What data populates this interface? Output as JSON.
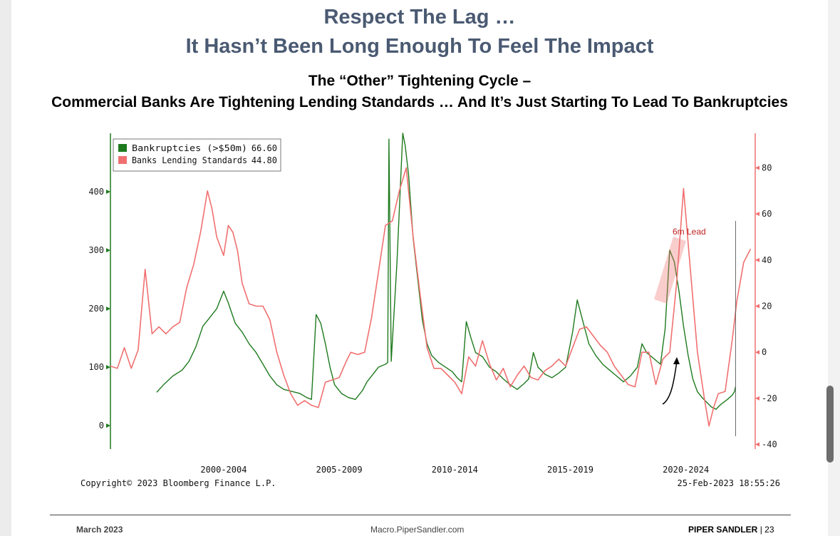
{
  "slide": {
    "title_line1": "Respect The Lag …",
    "title_line2": "It Hasn’t Been Long Enough To Feel The Impact",
    "subtitle_line1": "The “Other” Tightening Cycle –",
    "subtitle_line2": "Commercial Banks Are Tightening Lending Standards … And It’s Just Starting To Lead To Bankruptcies"
  },
  "chart_data": {
    "type": "line",
    "left_axis": {
      "ticks": [
        0,
        100,
        200,
        300,
        400
      ],
      "range": [
        -40,
        500
      ]
    },
    "right_axis": {
      "ticks": [
        -40,
        -20,
        0,
        20,
        40,
        60,
        80
      ],
      "range": [
        -42,
        95
      ]
    },
    "x_range": [
      1996.1,
      2024.0
    ],
    "x_ticks": [
      {
        "label": "2000-2004",
        "x": 2001.0
      },
      {
        "label": "2005-2009",
        "x": 2006.0
      },
      {
        "label": "2010-2014",
        "x": 2011.0
      },
      {
        "label": "2015-2019",
        "x": 2016.0
      },
      {
        "label": "2020-2024",
        "x": 2021.0
      }
    ],
    "series": [
      {
        "name": "Bankruptcies (>$50m)",
        "last_value": "66.60",
        "color": "#1e7a1e",
        "axis": "left",
        "points": [
          [
            1998.1,
            57
          ],
          [
            1998.4,
            70
          ],
          [
            1998.8,
            85
          ],
          [
            1999.2,
            95
          ],
          [
            1999.5,
            110
          ],
          [
            1999.8,
            135
          ],
          [
            2000.1,
            170
          ],
          [
            2000.4,
            185
          ],
          [
            2000.7,
            200
          ],
          [
            2001.0,
            230
          ],
          [
            2001.2,
            210
          ],
          [
            2001.5,
            175
          ],
          [
            2001.8,
            160
          ],
          [
            2002.1,
            140
          ],
          [
            2002.4,
            125
          ],
          [
            2002.7,
            105
          ],
          [
            2003.0,
            85
          ],
          [
            2003.3,
            70
          ],
          [
            2003.6,
            62
          ],
          [
            2004.0,
            58
          ],
          [
            2004.3,
            55
          ],
          [
            2004.6,
            48
          ],
          [
            2004.8,
            45
          ],
          [
            2005.0,
            190
          ],
          [
            2005.2,
            175
          ],
          [
            2005.4,
            140
          ],
          [
            2005.6,
            100
          ],
          [
            2005.8,
            70
          ],
          [
            2006.1,
            55
          ],
          [
            2006.4,
            48
          ],
          [
            2006.7,
            45
          ],
          [
            2007.0,
            60
          ],
          [
            2007.2,
            75
          ],
          [
            2007.5,
            90
          ],
          [
            2007.7,
            100
          ],
          [
            2008.0,
            105
          ],
          [
            2008.1,
            108
          ],
          [
            2008.15,
            490
          ],
          [
            2008.25,
            110
          ],
          [
            2008.5,
            280
          ],
          [
            2008.75,
            500
          ],
          [
            2008.85,
            480
          ],
          [
            2009.0,
            430
          ],
          [
            2009.2,
            320
          ],
          [
            2009.4,
            250
          ],
          [
            2009.6,
            180
          ],
          [
            2009.8,
            140
          ],
          [
            2010.0,
            120
          ],
          [
            2010.3,
            108
          ],
          [
            2010.6,
            100
          ],
          [
            2010.9,
            92
          ],
          [
            2011.1,
            82
          ],
          [
            2011.3,
            75
          ],
          [
            2011.5,
            178
          ],
          [
            2011.7,
            150
          ],
          [
            2011.9,
            125
          ],
          [
            2012.2,
            118
          ],
          [
            2012.5,
            100
          ],
          [
            2012.8,
            92
          ],
          [
            2013.1,
            80
          ],
          [
            2013.4,
            70
          ],
          [
            2013.7,
            62
          ],
          [
            2014.0,
            72
          ],
          [
            2014.2,
            80
          ],
          [
            2014.4,
            125
          ],
          [
            2014.6,
            100
          ],
          [
            2014.9,
            88
          ],
          [
            2015.2,
            82
          ],
          [
            2015.5,
            90
          ],
          [
            2015.8,
            100
          ],
          [
            2016.1,
            160
          ],
          [
            2016.3,
            215
          ],
          [
            2016.5,
            185
          ],
          [
            2016.8,
            140
          ],
          [
            2017.1,
            120
          ],
          [
            2017.4,
            105
          ],
          [
            2017.7,
            95
          ],
          [
            2018.0,
            85
          ],
          [
            2018.3,
            75
          ],
          [
            2018.6,
            85
          ],
          [
            2018.9,
            100
          ],
          [
            2019.1,
            140
          ],
          [
            2019.3,
            125
          ],
          [
            2019.6,
            115
          ],
          [
            2019.9,
            105
          ],
          [
            2020.1,
            165
          ],
          [
            2020.3,
            300
          ],
          [
            2020.5,
            280
          ],
          [
            2020.7,
            230
          ],
          [
            2020.9,
            170
          ],
          [
            2021.1,
            120
          ],
          [
            2021.3,
            80
          ],
          [
            2021.5,
            58
          ],
          [
            2021.7,
            48
          ],
          [
            2021.9,
            40
          ],
          [
            2022.1,
            32
          ],
          [
            2022.3,
            28
          ],
          [
            2022.5,
            36
          ],
          [
            2022.8,
            45
          ],
          [
            2023.0,
            52
          ],
          [
            2023.1,
            58
          ],
          [
            2023.15,
            66.6
          ]
        ]
      },
      {
        "name": "Banks Lending Standards",
        "last_value": "44.80",
        "color": "#f07070",
        "axis": "right",
        "points": [
          [
            1996.1,
            -6
          ],
          [
            1996.4,
            -7
          ],
          [
            1996.7,
            2
          ],
          [
            1997.0,
            -7
          ],
          [
            1997.3,
            1
          ],
          [
            1997.6,
            36
          ],
          [
            1997.9,
            8
          ],
          [
            1998.2,
            11
          ],
          [
            1998.5,
            8
          ],
          [
            1998.8,
            11
          ],
          [
            1999.1,
            13
          ],
          [
            1999.4,
            28
          ],
          [
            1999.7,
            38
          ],
          [
            2000.0,
            52
          ],
          [
            2000.3,
            70
          ],
          [
            2000.5,
            62
          ],
          [
            2000.7,
            50
          ],
          [
            2001.0,
            42
          ],
          [
            2001.2,
            55
          ],
          [
            2001.4,
            52
          ],
          [
            2001.6,
            44
          ],
          [
            2001.8,
            30
          ],
          [
            2002.1,
            21
          ],
          [
            2002.4,
            20
          ],
          [
            2002.7,
            20
          ],
          [
            2003.0,
            14
          ],
          [
            2003.3,
            0
          ],
          [
            2003.6,
            -10
          ],
          [
            2003.9,
            -18
          ],
          [
            2004.2,
            -23
          ],
          [
            2004.5,
            -21
          ],
          [
            2004.8,
            -23
          ],
          [
            2005.1,
            -24
          ],
          [
            2005.4,
            -13
          ],
          [
            2005.7,
            -12
          ],
          [
            2006.0,
            -11
          ],
          [
            2006.3,
            -4
          ],
          [
            2006.5,
            0
          ],
          [
            2006.8,
            -1
          ],
          [
            2007.1,
            0
          ],
          [
            2007.4,
            15
          ],
          [
            2007.7,
            35
          ],
          [
            2008.0,
            55
          ],
          [
            2008.3,
            57
          ],
          [
            2008.6,
            70
          ],
          [
            2008.9,
            80
          ],
          [
            2009.2,
            50
          ],
          [
            2009.5,
            25
          ],
          [
            2009.8,
            2
          ],
          [
            2010.1,
            -7
          ],
          [
            2010.4,
            -7
          ],
          [
            2010.7,
            -10
          ],
          [
            2011.0,
            -13
          ],
          [
            2011.3,
            -18
          ],
          [
            2011.6,
            -2
          ],
          [
            2011.9,
            -6
          ],
          [
            2012.2,
            5
          ],
          [
            2012.5,
            -5
          ],
          [
            2012.8,
            -12
          ],
          [
            2013.1,
            -7
          ],
          [
            2013.4,
            -15
          ],
          [
            2013.7,
            -10
          ],
          [
            2014.0,
            -6
          ],
          [
            2014.3,
            -11
          ],
          [
            2014.6,
            -12
          ],
          [
            2014.9,
            -8
          ],
          [
            2015.2,
            -6
          ],
          [
            2015.5,
            -3
          ],
          [
            2015.8,
            -6
          ],
          [
            2016.1,
            2
          ],
          [
            2016.4,
            10
          ],
          [
            2016.7,
            11
          ],
          [
            2017.0,
            7
          ],
          [
            2017.3,
            3
          ],
          [
            2017.6,
            0
          ],
          [
            2017.9,
            -6
          ],
          [
            2018.2,
            -10
          ],
          [
            2018.5,
            -14
          ],
          [
            2018.8,
            -15
          ],
          [
            2019.1,
            0
          ],
          [
            2019.4,
            0
          ],
          [
            2019.7,
            -14
          ],
          [
            2020.0,
            -3
          ],
          [
            2020.3,
            0
          ],
          [
            2020.6,
            30
          ],
          [
            2020.9,
            71
          ],
          [
            2021.2,
            35
          ],
          [
            2021.5,
            0
          ],
          [
            2021.8,
            -20
          ],
          [
            2022.0,
            -32
          ],
          [
            2022.2,
            -24
          ],
          [
            2022.4,
            -18
          ],
          [
            2022.7,
            -17
          ],
          [
            2023.0,
            5
          ],
          [
            2023.2,
            22
          ],
          [
            2023.5,
            39
          ],
          [
            2023.8,
            44.8
          ]
        ]
      }
    ],
    "annotation_label": "6m Lead",
    "copyright": "Copyright© 2023 Bloomberg Finance L.P.",
    "timestamp": "25-Feb-2023 18:55:26"
  },
  "footer": {
    "date": "March 2023",
    "url": "Macro.PiperSandler.com",
    "brand": "PIPER SANDLER",
    "page": "| 23"
  }
}
